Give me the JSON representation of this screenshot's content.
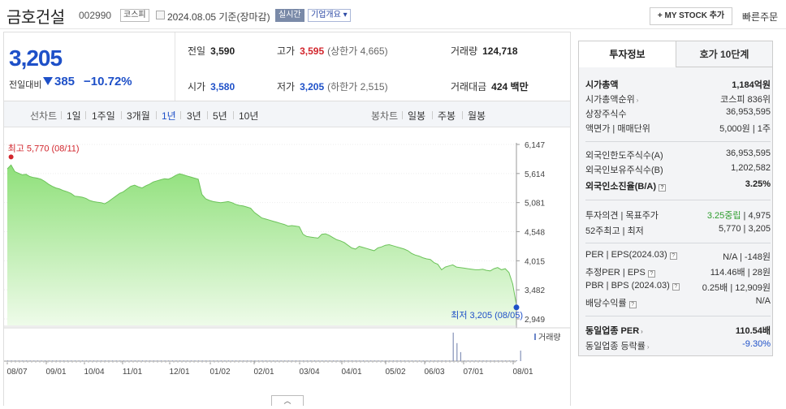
{
  "header": {
    "stock_name": "금호건설",
    "stock_code": "002990",
    "market": "코스피",
    "date_text": "2024.08.05  기준(장마감)",
    "realtime_tag": "실시간",
    "company_tag": "기업개요 ▾",
    "mystock_label": "+ MY STOCK 추가",
    "quick_order": "빠른주문"
  },
  "price": {
    "current": "3,205",
    "change_label": "전일대비",
    "change_amount": "385",
    "change_percent": "−10.72%",
    "prev_label": "전일",
    "prev_value": "3,590",
    "high_label": "고가",
    "high_value": "3,595",
    "upper_limit": "(상한가 4,665)",
    "volume_label": "거래량",
    "volume_value": "124,718",
    "open_label": "시가",
    "open_value": "3,580",
    "low_label": "저가",
    "low_value": "3,205",
    "lower_limit": "(하한가 2,515)",
    "amount_label": "거래대금",
    "amount_value": "424 백만"
  },
  "chart_tabs": {
    "line_label": "선차트",
    "periods": [
      "1일",
      "1주일",
      "3개월",
      "1년",
      "3년",
      "5년",
      "10년"
    ],
    "active_period": "1년",
    "candle_label": "봉차트",
    "candles": [
      "일봉",
      "주봉",
      "월봉"
    ]
  },
  "chart_data": {
    "type": "area",
    "y_ticks": [
      "6,147",
      "5,614",
      "5,081",
      "4,548",
      "4,015",
      "3,482",
      "2,949"
    ],
    "ylim": [
      2949,
      6147
    ],
    "x_ticks": [
      "08/07",
      "09/01",
      "10/04",
      "11/01",
      "12/01",
      "01/02",
      "02/01",
      "03/04",
      "04/01",
      "05/02",
      "06/03",
      "07/01",
      "08/01"
    ],
    "high_label": "최고 5,770 (08/11)",
    "low_label": "최저 3,205 (08/05)",
    "volume_label": "거래량",
    "values": [
      5700,
      5770,
      5650,
      5620,
      5590,
      5600,
      5560,
      5540,
      5530,
      5510,
      5470,
      5420,
      5380,
      5350,
      5330,
      5300,
      5280,
      5250,
      5200,
      5190,
      5180,
      5160,
      5120,
      5100,
      5090,
      5080,
      5060,
      5100,
      5150,
      5200,
      5250,
      5280,
      5330,
      5380,
      5400,
      5370,
      5350,
      5390,
      5420,
      5460,
      5480,
      5500,
      5520,
      5510,
      5540,
      5580,
      5610,
      5590,
      5570,
      5550,
      5530,
      5510,
      5230,
      5150,
      5120,
      5100,
      5090,
      5080,
      5090,
      5100,
      5080,
      5050,
      5030,
      5020,
      5000,
      4980,
      4900,
      4850,
      4800,
      4780,
      4760,
      4740,
      4720,
      4700,
      4680,
      4650,
      4660,
      4650,
      4640,
      4500,
      4460,
      4450,
      4440,
      4430,
      4500,
      4510,
      4480,
      4440,
      4400,
      4380,
      4350,
      4300,
      4250,
      4230,
      4280,
      4260,
      4240,
      4220,
      4200,
      4250,
      4270,
      4300,
      4310,
      4290,
      4270,
      4250,
      4230,
      4200,
      4150,
      4120,
      4100,
      4070,
      4050,
      4040,
      3980,
      3950,
      3850,
      3900,
      3920,
      3940,
      3900,
      3890,
      3880,
      3870,
      3860,
      3850,
      3850,
      3860,
      3840,
      3830,
      3870,
      3890,
      3850,
      3870,
      3800,
      3590,
      3205
    ],
    "volume_spikes": [
      {
        "index": 119,
        "value": 95
      },
      {
        "index": 120,
        "value": 60
      },
      {
        "index": 121,
        "value": 30
      },
      {
        "index": 137,
        "value": 35
      }
    ]
  },
  "invest_info": {
    "tab_active": "투자정보",
    "tab_other": "호가 10단계",
    "market_cap_label": "시가총액",
    "market_cap": "1,184억원",
    "cap_rank_label": "시가총액순위",
    "cap_rank": "코스피  836위",
    "shares_label": "상장주식수",
    "shares": "36,953,595",
    "face_label": "액면가 | 매매단위",
    "face": "5,000원 | 1주",
    "foreign_limit_label": "외국인한도주식수(A)",
    "foreign_limit": "36,953,595",
    "foreign_hold_label": "외국인보유주식수(B)",
    "foreign_hold": "1,202,582",
    "foreign_ratio_label": "외국인소진율(B/A)",
    "foreign_ratio": "3.25%",
    "opinion_label": "투자의견 | 목표주가",
    "opinion": "3.25중립",
    "target": "4,975",
    "week52_label": "52주최고 | 최저",
    "week52": "5,770 | 3,205",
    "per_label": "PER | EPS(2024.03)",
    "per": "N/A | -148원",
    "est_per_label": "추정PER | EPS",
    "est_per": "114.46배 | 28원",
    "pbr_label": "PBR | BPS (2024.03)",
    "pbr": "0.25배 | 12,909원",
    "dividend_label": "배당수익률",
    "dividend": "N/A",
    "industry_per_label": "동일업종 PER",
    "industry_per": "110.54배",
    "industry_rate_label": "동일업종 등락률",
    "industry_rate": "-9.30%"
  },
  "collapse_label": "︿"
}
